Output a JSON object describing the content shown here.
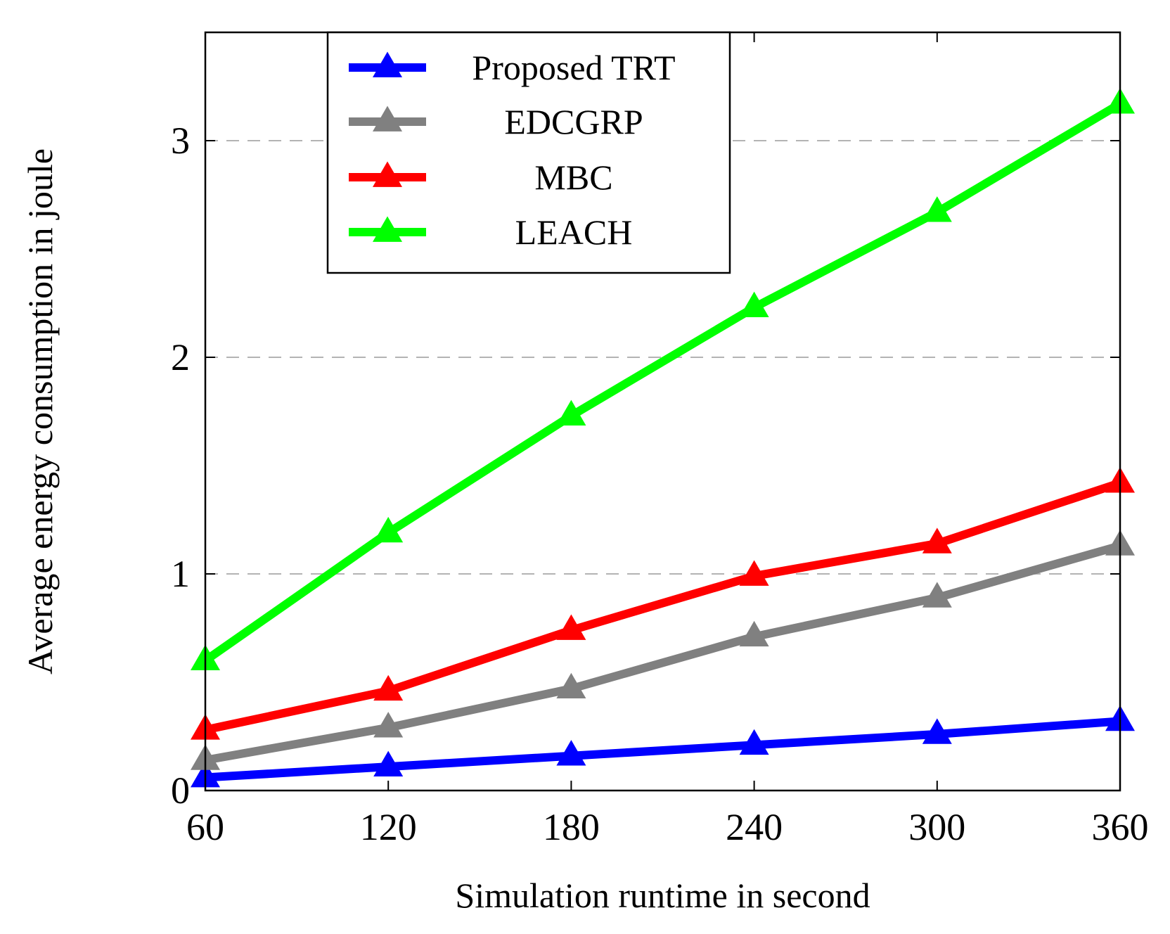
{
  "chart_data": {
    "type": "line",
    "title": "",
    "xlabel": "Simulation runtime in second",
    "ylabel": "Average energy consumption in joule",
    "x": [
      60,
      120,
      180,
      240,
      300,
      360
    ],
    "x_tick_labels": [
      "60",
      "120",
      "180",
      "240",
      "300",
      "360"
    ],
    "y_ticks": [
      0,
      1,
      2,
      3
    ],
    "y_tick_labels": [
      "0",
      "1",
      "2",
      "3"
    ],
    "xlim": [
      60,
      360
    ],
    "ylim": [
      0,
      3.5
    ],
    "grid": "horizontal dashed",
    "legend_position": "top-left",
    "series": [
      {
        "name": "Proposed TRT",
        "color": "#0000ff",
        "marker": "triangle",
        "values": [
          0.06,
          0.11,
          0.16,
          0.21,
          0.26,
          0.32
        ]
      },
      {
        "name": "EDCGRP",
        "color": "#808080",
        "marker": "triangle",
        "values": [
          0.14,
          0.29,
          0.47,
          0.71,
          0.89,
          1.13
        ]
      },
      {
        "name": "MBC",
        "color": "#ff0000",
        "marker": "triangle",
        "values": [
          0.28,
          0.46,
          0.74,
          0.99,
          1.14,
          1.42
        ]
      },
      {
        "name": "LEACH",
        "color": "#00ff00",
        "marker": "triangle",
        "values": [
          0.6,
          1.19,
          1.73,
          2.23,
          2.67,
          3.17
        ]
      }
    ]
  }
}
